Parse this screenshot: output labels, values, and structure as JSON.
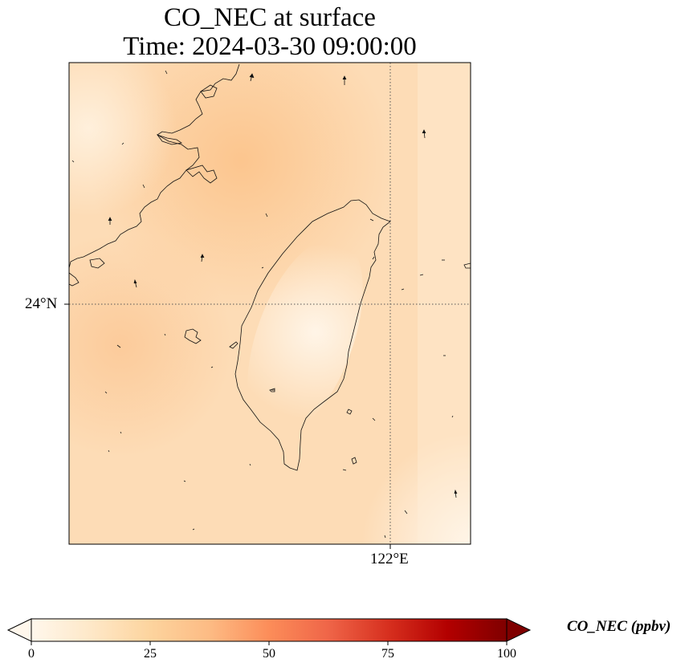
{
  "title": {
    "line1": "CO_NEC at surface",
    "line2": "Time: 2024-03-30 09:00:00"
  },
  "map": {
    "lat_label": "24°N",
    "lon_label": "122°E",
    "gridlines": "dotted",
    "features": [
      "Taiwan coastline",
      "Fujian coastline",
      "Penghu islands",
      "wind arrows"
    ],
    "field_colors": {
      "low": "#fff3e2",
      "mid": "#fdd6a6",
      "high": "#fcc58c"
    }
  },
  "colorbar": {
    "label": "CO_NEC (ppbv)",
    "ticks": [
      "0",
      "25",
      "50",
      "75",
      "100"
    ],
    "range": [
      0,
      100
    ],
    "extend": "both",
    "colormap": "OrRd",
    "colors": [
      "#fff7ec",
      "#fdd49e",
      "#fc8d59",
      "#d7301f",
      "#7f0000"
    ]
  }
}
